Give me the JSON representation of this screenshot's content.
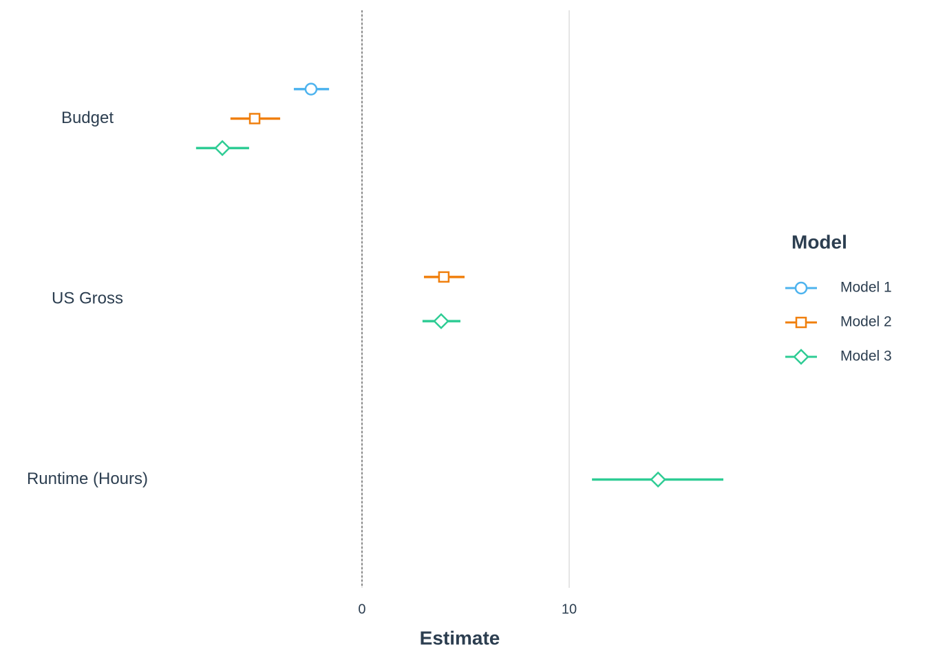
{
  "chart_data": {
    "type": "coefplot",
    "x_label": "Estimate",
    "categories": [
      "Budget",
      "US Gross",
      "Runtime (Hours)"
    ],
    "legend_title": "Model",
    "legend_position": "right",
    "series": [
      {
        "name": "Model 1",
        "color": "#4db3ee",
        "marker": "circle",
        "values": [
          -2.46,
          null,
          null
        ],
        "low": [
          -3.29,
          null,
          null
        ],
        "high": [
          -1.59,
          null,
          null
        ]
      },
      {
        "name": "Model 2",
        "color": "#f07f0c",
        "marker": "square",
        "values": [
          -5.18,
          3.95,
          null
        ],
        "low": [
          -6.35,
          2.99,
          null
        ],
        "high": [
          -3.95,
          4.95,
          null
        ]
      },
      {
        "name": "Model 3",
        "color": "#2ecc94",
        "marker": "diamond",
        "values": [
          -6.74,
          3.82,
          14.29
        ],
        "low": [
          -8.01,
          2.92,
          11.1
        ],
        "high": [
          -5.45,
          4.75,
          17.44
        ]
      }
    ],
    "xlim": [
      -9.5,
      19.4
    ],
    "xticks": [
      0,
      10
    ],
    "grid": true,
    "reference_line": 0
  }
}
